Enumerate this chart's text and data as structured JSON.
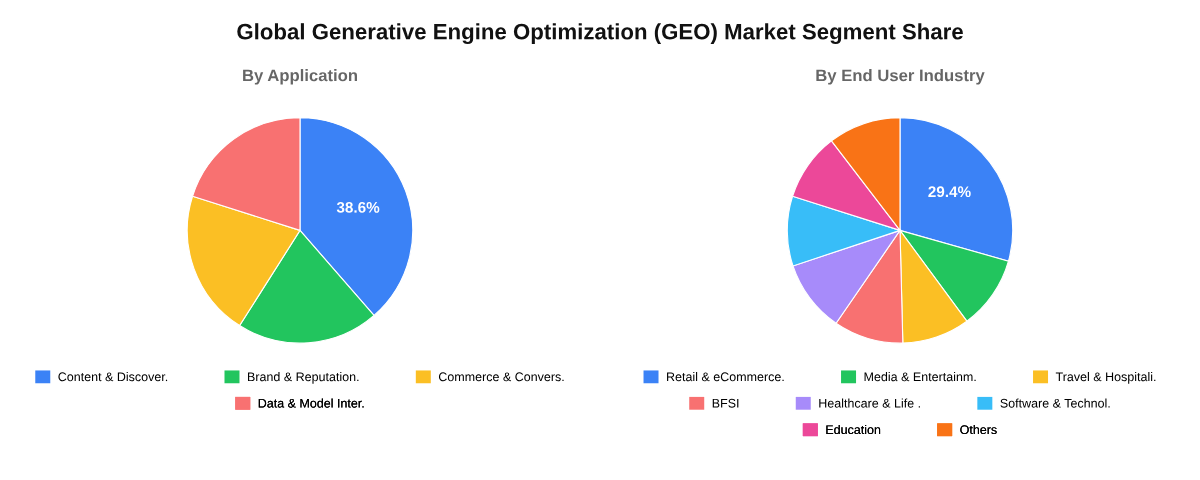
{
  "chart_data": [
    {
      "type": "pie",
      "title": "Global Generative Engine Optimization (GEO) Market Segment Share",
      "subtitle": "By Application",
      "categories": [
        "Content & Discover.",
        "Brand & Reputation.",
        "Commerce & Convers.",
        "Data & Model Inter."
      ],
      "values": [
        38.6,
        20.4,
        20.9,
        20.1
      ],
      "colors": [
        "#3b82f6",
        "#22c55e",
        "#fbbf24",
        "#f87171"
      ],
      "value_labels": [
        "38.6%",
        null,
        null,
        null
      ],
      "legend": "bottom"
    },
    {
      "type": "pie",
      "subtitle": "By End User Industry",
      "categories": [
        "Retail & eCommerce.",
        "Media & Entertainm.",
        "Travel & Hospitali.",
        "BFSI",
        "Healthcare & Life .",
        "Software & Technol.",
        "Education",
        "Others"
      ],
      "values": [
        29.4,
        10.5,
        9.7,
        10.0,
        10.3,
        10.0,
        9.7,
        10.4
      ],
      "colors": [
        "#3b82f6",
        "#22c55e",
        "#fbbf24",
        "#f87171",
        "#a78bfa",
        "#38bdf8",
        "#ec4899",
        "#f97316"
      ],
      "value_labels": [
        "29.4%",
        null,
        null,
        null,
        null,
        null,
        null,
        null
      ],
      "legend": "bottom"
    }
  ]
}
